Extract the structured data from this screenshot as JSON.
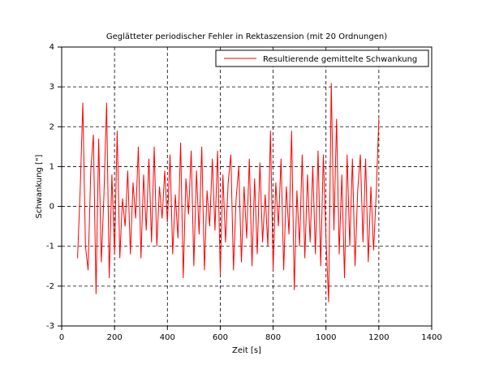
{
  "chart_data": {
    "type": "line",
    "title": "Geglätteter periodischer Fehler in Rektaszension (mit 20 Ordnungen)",
    "xlabel": "Zeit [s]",
    "ylabel": "Schwankung [\"]",
    "xlim": [
      0,
      1400
    ],
    "xticks": [
      0,
      200,
      400,
      600,
      800,
      1000,
      1200,
      1400
    ],
    "ylim": [
      -3,
      4
    ],
    "yticks": [
      -3,
      -2,
      -1,
      0,
      1,
      2,
      3,
      4
    ],
    "grid": true,
    "legend": "upper right",
    "x": [
      60,
      70,
      80,
      90,
      100,
      110,
      120,
      130,
      140,
      150,
      160,
      170,
      180,
      190,
      200,
      210,
      220,
      230,
      240,
      250,
      260,
      270,
      280,
      290,
      300,
      310,
      320,
      330,
      340,
      350,
      360,
      370,
      380,
      390,
      400,
      410,
      420,
      430,
      440,
      450,
      460,
      470,
      480,
      490,
      500,
      510,
      520,
      530,
      540,
      550,
      560,
      570,
      580,
      590,
      600,
      610,
      620,
      630,
      640,
      650,
      660,
      670,
      680,
      690,
      700,
      710,
      720,
      730,
      740,
      750,
      760,
      770,
      780,
      790,
      800,
      810,
      820,
      830,
      840,
      850,
      860,
      870,
      880,
      890,
      900,
      910,
      920,
      930,
      940,
      950,
      960,
      970,
      980,
      990,
      1000,
      1010,
      1020,
      1030,
      1040,
      1050,
      1060,
      1070,
      1080,
      1090,
      1100,
      1110,
      1120,
      1130,
      1140,
      1150,
      1160,
      1170,
      1180,
      1190,
      1200
    ],
    "series": [
      {
        "name": "Resultierende gemittelte Schwankung",
        "color": "#ff0000",
        "values": [
          -1.3,
          0.4,
          2.6,
          -1.0,
          -1.6,
          0.9,
          1.8,
          -2.2,
          1.7,
          -1.4,
          0.3,
          2.6,
          -1.8,
          0.8,
          -1.2,
          1.9,
          -1.3,
          0.2,
          -0.5,
          0.9,
          -1.2,
          0.6,
          -0.3,
          1.5,
          -1.3,
          0.8,
          -0.6,
          1.2,
          -0.9,
          1.5,
          -1.0,
          0.5,
          -0.3,
          0.9,
          -0.4,
          1.3,
          -1.2,
          0.3,
          -0.8,
          1.6,
          -1.8,
          0.7,
          -0.2,
          1.4,
          -1.5,
          0.9,
          -0.7,
          1.5,
          -1.6,
          0.4,
          -0.5,
          1.2,
          -0.6,
          1.4,
          -1.7,
          0.8,
          -0.9,
          0.6,
          1.3,
          -1.6,
          0.2,
          1.0,
          -1.4,
          0.5,
          -0.8,
          1.2,
          -1.5,
          0.7,
          -1.2,
          1.1,
          -0.9,
          0.3,
          -1.0,
          1.9,
          -1.6,
          0.6,
          -0.5,
          1.2,
          -1.6,
          0.5,
          -0.7,
          1.9,
          -2.1,
          0.4,
          -1.0,
          1.3,
          -1.3,
          0.8,
          -0.9,
          1.0,
          -1.2,
          1.4,
          -1.5,
          1.3,
          -0.8,
          -2.4,
          3.1,
          -0.6,
          2.2,
          -1.2,
          0.8,
          -1.8,
          1.3,
          -1.0,
          1.2,
          -1.5,
          0.4,
          1.3,
          -0.9,
          1.2,
          -1.4,
          0.5,
          -1.1,
          0.3,
          2.2
        ]
      }
    ]
  }
}
